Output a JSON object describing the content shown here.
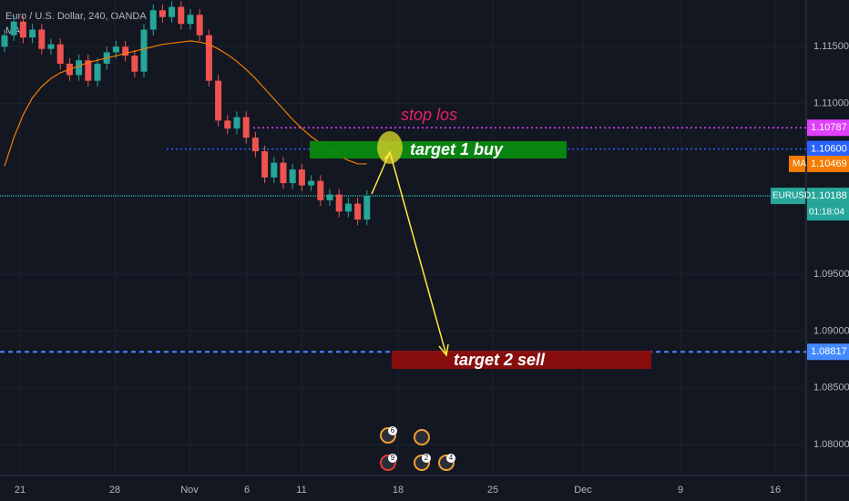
{
  "chart_data": {
    "type": "candlestick",
    "title": "Euro / U.S. Dollar, 240, OANDA",
    "indicator": "MA",
    "open": [
      1.115,
      1.116,
      1.1172,
      1.1158,
      1.1165,
      1.1148,
      1.1152,
      1.1135,
      1.1125,
      1.1138,
      1.112,
      1.1135,
      1.1145,
      1.115,
      1.1142,
      1.1128,
      1.1165,
      1.1182,
      1.1176,
      1.1185,
      1.117,
      1.1178,
      1.116,
      1.112,
      1.1085,
      1.1078,
      1.1088,
      1.107,
      1.1058,
      1.1035,
      1.1048,
      1.103,
      1.1042,
      1.1028,
      1.1032,
      1.1015,
      1.102,
      1.1005,
      1.1012,
      1.0998
    ],
    "high": [
      1.1165,
      1.1177,
      1.1177,
      1.117,
      1.117,
      1.1157,
      1.1157,
      1.114,
      1.1143,
      1.1143,
      1.114,
      1.115,
      1.1155,
      1.1155,
      1.1147,
      1.117,
      1.1187,
      1.1187,
      1.119,
      1.119,
      1.1183,
      1.1183,
      1.1165,
      1.1125,
      1.109,
      1.1093,
      1.1093,
      1.1075,
      1.1063,
      1.1053,
      1.1053,
      1.1047,
      1.1047,
      1.1037,
      1.1037,
      1.1025,
      1.1025,
      1.1017,
      1.1017,
      1.10238
    ],
    "low": [
      1.1145,
      1.1155,
      1.1153,
      1.1153,
      1.1143,
      1.1143,
      1.113,
      1.112,
      1.112,
      1.1115,
      1.1115,
      1.113,
      1.114,
      1.1137,
      1.1123,
      1.1123,
      1.116,
      1.1171,
      1.1171,
      1.1165,
      1.1165,
      1.1155,
      1.1115,
      1.108,
      1.1073,
      1.1073,
      1.1065,
      1.1053,
      1.103,
      1.103,
      1.1025,
      1.1025,
      1.1023,
      1.1023,
      1.101,
      1.101,
      1.1,
      1.1,
      1.0993,
      1.0993
    ],
    "close": [
      1.116,
      1.1172,
      1.1158,
      1.1165,
      1.1148,
      1.1152,
      1.1135,
      1.1125,
      1.1138,
      1.112,
      1.1135,
      1.1145,
      1.115,
      1.1142,
      1.1128,
      1.1165,
      1.1182,
      1.1176,
      1.1185,
      1.117,
      1.1178,
      1.116,
      1.112,
      1.1085,
      1.1078,
      1.1088,
      1.107,
      1.1058,
      1.1035,
      1.1048,
      1.103,
      1.1042,
      1.1028,
      1.1032,
      1.1015,
      1.102,
      1.1005,
      1.1012,
      1.0998,
      1.10188
    ],
    "ma": {
      "color": "#f57c00",
      "values": [
        1.1045,
        1.107,
        1.109,
        1.1105,
        1.1115,
        1.1122,
        1.1127,
        1.113,
        1.1133,
        1.1136,
        1.1138,
        1.114,
        1.1142,
        1.1144,
        1.1146,
        1.1148,
        1.115,
        1.1152,
        1.1153,
        1.1154,
        1.1155,
        1.1154,
        1.1152,
        1.1148,
        1.1143,
        1.1137,
        1.113,
        1.1122,
        1.1113,
        1.1104,
        1.1095,
        1.1086,
        1.1078,
        1.1071,
        1.1065,
        1.1059,
        1.1054,
        1.105,
        1.1047,
        1.10469
      ]
    },
    "xticks": [
      "21",
      "28",
      "Nov",
      "6",
      "11",
      "18",
      "25",
      "Dec",
      "9",
      "16"
    ],
    "ylim": [
      1.0773,
      1.1191
    ],
    "yticks": [
      {
        "value": 1.08,
        "label": "1.08000"
      },
      {
        "value": 1.085,
        "label": "1.08500"
      },
      {
        "value": 1.09,
        "label": "1.09000"
      },
      {
        "value": 1.095,
        "label": "1.09500"
      },
      {
        "value": 1.11,
        "label": "1.11000"
      },
      {
        "value": 1.115,
        "label": "1.11500"
      }
    ],
    "stop": {
      "text": "stop los",
      "price": 1.10787
    },
    "target1": {
      "text": "target 1 buy",
      "price": {
        "value": 1.106,
        "label": "1.10600"
      }
    },
    "target2": {
      "text": "target 2 sell",
      "price": 1.08817
    },
    "ma_label": {
      "name": "MA",
      "price": 1.10469
    },
    "last": {
      "symbol": "EURUSD",
      "price": 1.10188,
      "countdown": "01:18:04"
    },
    "events": [
      "6",
      "9",
      "2",
      "4"
    ]
  }
}
